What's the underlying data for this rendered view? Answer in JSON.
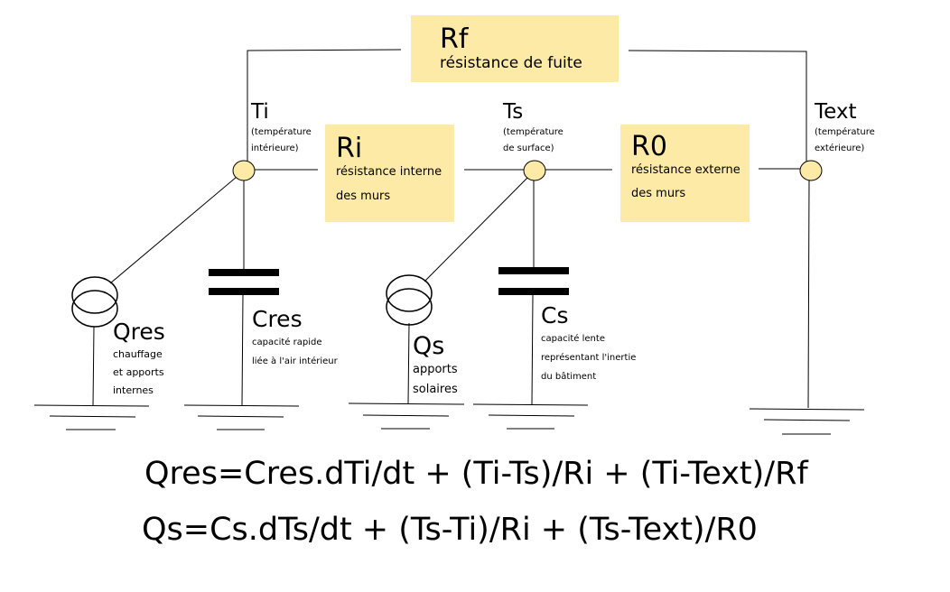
{
  "boxes": {
    "rf": {
      "title": "Rf",
      "text": "résistance de fuite"
    },
    "ri": {
      "title": "Ri",
      "line1": "résistance interne",
      "line2": "des murs"
    },
    "r0": {
      "title": "R0",
      "line1": "résistance externe",
      "line2": "des murs"
    }
  },
  "nodes": {
    "ti": {
      "title": "Ti",
      "line1": "(température",
      "line2": "intérieure)"
    },
    "ts": {
      "title": "Ts",
      "line1": "(température",
      "line2": "de surface)"
    },
    "text": {
      "title": "Text",
      "line1": "(température",
      "line2": "extérieure)"
    }
  },
  "components": {
    "qres": {
      "title": "Qres",
      "line1": "chauffage",
      "line2": "et apports",
      "line3": "internes"
    },
    "cres": {
      "title": "Cres",
      "line1": "capacité rapide",
      "line2": "liée à l'air intérieur"
    },
    "qs": {
      "title": "Qs",
      "line1": "apports",
      "line2": "solaires"
    },
    "cs": {
      "title": "Cs",
      "line1": "capacité lente",
      "line2": "représentant l'inertie",
      "line3": "du bâtiment"
    }
  },
  "equations": {
    "eq1": "Qres=Cres.dTi/dt + (Ti-Ts)/Ri + (Ti-Text)/Rf",
    "eq2": "Qs=Cs.dTs/dt + (Ts-Ti)/Ri + (Ts-Text)/R0"
  },
  "colors": {
    "box_fill": "#fdeaa7",
    "node_fill": "#fdeaa7",
    "line": "#000000"
  }
}
